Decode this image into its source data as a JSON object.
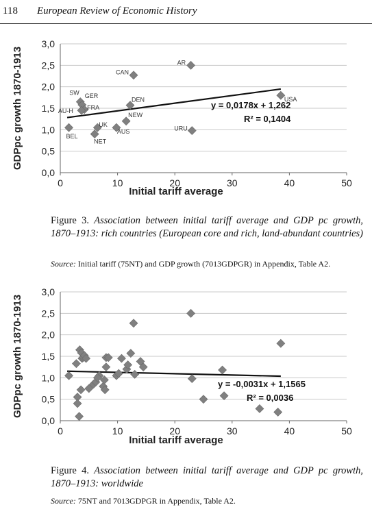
{
  "header": {
    "page_number": "118",
    "journal_title": "European Review of Economic History"
  },
  "figure3": {
    "caption_label": "Figure 3.",
    "caption_text": "Association between initial tariff average and GDP pc growth, 1870–1913: rich countries (European core and rich, land-abundant countries)",
    "source_label": "Source:",
    "source_text": "Initial tariff (75NT) and GDP growth (7013GDPGR) in Appendix, Table A2."
  },
  "figure4": {
    "caption_label": "Figure 4.",
    "caption_text": "Association between initial tariff average and GDP pc growth, 1870–1913: worldwide",
    "source_label": "Source:",
    "source_text": "75NT and 7013GDPGR in Appendix, Table A2."
  },
  "chart_data": [
    {
      "type": "scatter",
      "title": "",
      "xlabel": "Initial tariff average",
      "ylabel": "GDPpc growth 1870-1913",
      "xlim": [
        0,
        50
      ],
      "ylim": [
        0,
        3
      ],
      "x_ticks": [
        "0",
        "10",
        "20",
        "30",
        "40",
        "50"
      ],
      "y_ticks": [
        "0,0",
        "0,5",
        "1,0",
        "1,5",
        "2,0",
        "2,5",
        "3,0"
      ],
      "grid": "horizontal",
      "marker": "diamond",
      "marker_color": "#808080",
      "points": [
        {
          "x": 1.5,
          "y": 1.05,
          "label": "BEL"
        },
        {
          "x": 3.5,
          "y": 1.65,
          "label": "SW"
        },
        {
          "x": 3.8,
          "y": 1.58,
          "label": "GER"
        },
        {
          "x": 4.2,
          "y": 1.47,
          "label": "FRA"
        },
        {
          "x": 3.7,
          "y": 1.45,
          "label": "AU-H"
        },
        {
          "x": 6.5,
          "y": 1.05,
          "label": "UK"
        },
        {
          "x": 6.0,
          "y": 0.9,
          "label": "NET"
        },
        {
          "x": 9.8,
          "y": 1.05,
          "label": "AUS"
        },
        {
          "x": 11.5,
          "y": 1.2,
          "label": "NEW"
        },
        {
          "x": 12.2,
          "y": 1.57,
          "label": "DEN"
        },
        {
          "x": 12.8,
          "y": 2.27,
          "label": "CAN"
        },
        {
          "x": 22.8,
          "y": 2.5,
          "label": "AR"
        },
        {
          "x": 23.0,
          "y": 0.98,
          "label": "URU"
        },
        {
          "x": 38.5,
          "y": 1.8,
          "label": "USA"
        }
      ],
      "trendline": {
        "slope": 0.0178,
        "intercept": 1.262,
        "x_range": [
          1.2,
          38.5
        ]
      },
      "equation": "y = 0,0178x + 1,262",
      "r_squared": "R² = 0,1404"
    },
    {
      "type": "scatter",
      "title": "",
      "xlabel": "Initial tariff average",
      "ylabel": "GDPpc growth 1870-1913",
      "xlim": [
        0,
        50
      ],
      "ylim": [
        0,
        3
      ],
      "x_ticks": [
        "0",
        "10",
        "20",
        "30",
        "40",
        "50"
      ],
      "y_ticks": [
        "0,0",
        "0,5",
        "1,0",
        "1,5",
        "2,0",
        "2,5",
        "3,0"
      ],
      "grid": "horizontal",
      "marker": "diamond",
      "marker_color": "#808080",
      "points": [
        {
          "x": 1.5,
          "y": 1.05
        },
        {
          "x": 2.8,
          "y": 1.33
        },
        {
          "x": 3.0,
          "y": 0.55
        },
        {
          "x": 3.0,
          "y": 0.4
        },
        {
          "x": 3.3,
          "y": 0.1
        },
        {
          "x": 3.4,
          "y": 1.65
        },
        {
          "x": 3.7,
          "y": 1.58
        },
        {
          "x": 3.8,
          "y": 1.45
        },
        {
          "x": 4.0,
          "y": 1.47
        },
        {
          "x": 4.2,
          "y": 1.52
        },
        {
          "x": 3.6,
          "y": 0.72
        },
        {
          "x": 4.5,
          "y": 1.45
        },
        {
          "x": 5.0,
          "y": 0.75
        },
        {
          "x": 5.8,
          "y": 0.85
        },
        {
          "x": 6.2,
          "y": 0.9
        },
        {
          "x": 6.8,
          "y": 1.05
        },
        {
          "x": 6.5,
          "y": 1.0
        },
        {
          "x": 7.5,
          "y": 0.8
        },
        {
          "x": 7.8,
          "y": 0.72
        },
        {
          "x": 7.7,
          "y": 0.95
        },
        {
          "x": 8.0,
          "y": 1.25
        },
        {
          "x": 8.0,
          "y": 1.47
        },
        {
          "x": 8.4,
          "y": 1.47
        },
        {
          "x": 9.8,
          "y": 1.05
        },
        {
          "x": 10.2,
          "y": 1.1
        },
        {
          "x": 10.7,
          "y": 1.45
        },
        {
          "x": 11.6,
          "y": 1.2
        },
        {
          "x": 11.8,
          "y": 1.3
        },
        {
          "x": 12.3,
          "y": 1.57
        },
        {
          "x": 12.8,
          "y": 2.27
        },
        {
          "x": 13.0,
          "y": 1.08
        },
        {
          "x": 14.0,
          "y": 1.38
        },
        {
          "x": 14.5,
          "y": 1.25
        },
        {
          "x": 22.8,
          "y": 2.5
        },
        {
          "x": 23.0,
          "y": 0.98
        },
        {
          "x": 25.0,
          "y": 0.5
        },
        {
          "x": 28.3,
          "y": 1.18
        },
        {
          "x": 28.6,
          "y": 0.58
        },
        {
          "x": 34.8,
          "y": 0.28
        },
        {
          "x": 38.0,
          "y": 0.2
        },
        {
          "x": 38.5,
          "y": 1.8
        }
      ],
      "trendline": {
        "slope": -0.0031,
        "intercept": 1.1565,
        "x_range": [
          1.2,
          38.5
        ]
      },
      "equation": "y = -0,0031x + 1,1565",
      "r_squared": "R² = 0,0036"
    }
  ]
}
